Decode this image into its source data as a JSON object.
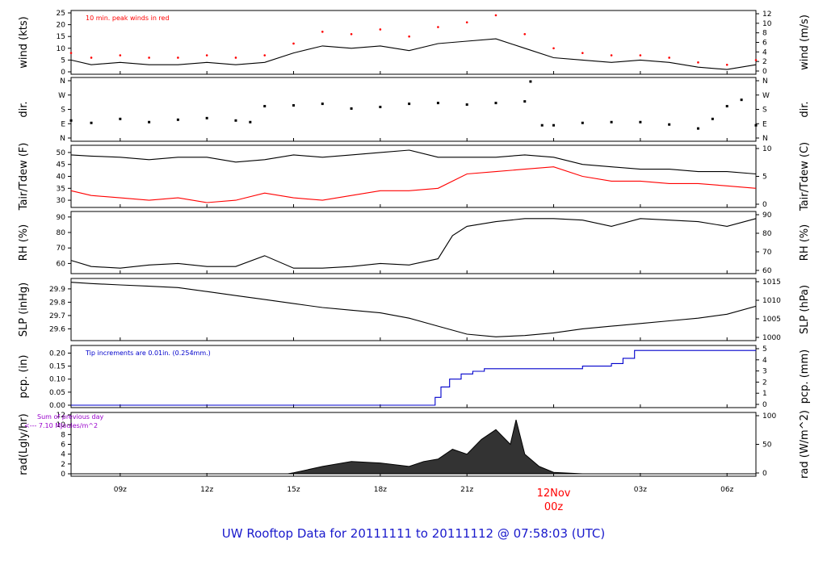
{
  "footer_title": "UW Rooftop Data for 20111111  to  20111112 @ 07:58:03  (UTC)",
  "colors": {
    "axis": "#000000",
    "main_series": "#000000",
    "dewpoint": "#ff0000",
    "peak_wind": "#ff0000",
    "precip": "#0000cc",
    "radiation_note": "#9900cc",
    "date_label": "#ff0000",
    "footer": "#1a1acc"
  },
  "x_axis": {
    "tick_labels": [
      "09z",
      "12z",
      "15z",
      "18z",
      "21z",
      "03z",
      "06z"
    ],
    "tick_hours": [
      9,
      12,
      15,
      18,
      21,
      27,
      30
    ],
    "date_marker": {
      "line1": "12Nov",
      "line2": "00z",
      "hour": 24
    },
    "range_hours": [
      7.3,
      31.0
    ]
  },
  "chart_data": [
    {
      "type": "line",
      "panel": "wind",
      "ylabel_left": "wind (kts)",
      "ylabel_right": "wind (m/s)",
      "ylim": [
        0,
        25
      ],
      "ticks_left": [
        0,
        5,
        10,
        15,
        20,
        25
      ],
      "ticks_right": [
        "0",
        "2",
        "4",
        "6",
        "8",
        "10",
        "12"
      ],
      "annotation": "10 min. peak winds in red",
      "series": [
        {
          "x": [
            7.3,
            8,
            9,
            10,
            11,
            12,
            13,
            14,
            15,
            16,
            17,
            18,
            19,
            20,
            21,
            22,
            23,
            24,
            25,
            26,
            27,
            28,
            29,
            30,
            31
          ],
          "values": [
            5,
            3,
            4,
            3,
            3,
            4,
            3,
            4,
            8,
            11,
            10,
            11,
            9,
            12,
            13,
            14,
            10,
            6,
            5,
            4,
            5,
            4,
            2,
            1,
            3
          ]
        },
        {
          "name": "peak",
          "x": [
            7.3,
            8,
            9,
            10,
            11,
            12,
            13,
            14,
            15,
            16,
            17,
            18,
            19,
            20,
            21,
            22,
            23,
            24,
            25,
            26,
            27,
            28,
            29,
            30,
            31
          ],
          "values": [
            8,
            6,
            7,
            6,
            6,
            7,
            6,
            7,
            12,
            17,
            16,
            18,
            15,
            19,
            21,
            24,
            16,
            10,
            8,
            7,
            7,
            6,
            4,
            3,
            5
          ]
        }
      ]
    },
    {
      "type": "scatter",
      "panel": "direction",
      "ylabel_left": "dir.",
      "ylabel_right": "dir.",
      "ticks_left": [
        "N",
        "E",
        "S",
        "W",
        "N"
      ],
      "ticks_right": [
        "N",
        "E",
        "S",
        "W",
        "N"
      ],
      "x": [
        7.3,
        8,
        9,
        10,
        11,
        12,
        13,
        13.5,
        14,
        15,
        16,
        17,
        18,
        19,
        20,
        21,
        22,
        23,
        23.2,
        23.6,
        24,
        25,
        26,
        27,
        28,
        29,
        29.5,
        30,
        30.5,
        31
      ],
      "values": [
        110,
        95,
        120,
        100,
        115,
        125,
        110,
        100,
        200,
        205,
        215,
        185,
        195,
        215,
        220,
        210,
        220,
        230,
        355,
        80,
        80,
        95,
        100,
        100,
        85,
        60,
        120,
        200,
        240,
        80
      ]
    },
    {
      "type": "line",
      "panel": "temperature",
      "ylabel_left": "Tair/Tdew (F)",
      "ylabel_right": "Tair/Tdew (C)",
      "ylim": [
        28,
        52
      ],
      "ticks_left": [
        30,
        35,
        40,
        45,
        50
      ],
      "ticks_right": [
        "0",
        "5",
        "10"
      ],
      "series": [
        {
          "name": "Tair",
          "x": [
            7.3,
            8,
            9,
            10,
            11,
            12,
            13,
            14,
            15,
            16,
            17,
            18,
            19,
            20,
            21,
            22,
            23,
            24,
            25,
            26,
            27,
            28,
            29,
            30,
            31
          ],
          "values": [
            49,
            48.5,
            48,
            47,
            48,
            48,
            46,
            47,
            49,
            48,
            49,
            50,
            51,
            48,
            48,
            48,
            49,
            48,
            45,
            44,
            43,
            43,
            42,
            42,
            41
          ]
        },
        {
          "name": "Tdew",
          "x": [
            7.3,
            8,
            9,
            10,
            11,
            12,
            13,
            14,
            15,
            16,
            17,
            18,
            19,
            20,
            21,
            22,
            23,
            24,
            25,
            26,
            27,
            28,
            29,
            30,
            31
          ],
          "values": [
            34,
            32,
            31,
            30,
            31,
            29,
            30,
            33,
            31,
            30,
            32,
            34,
            34,
            35,
            41,
            42,
            43,
            44,
            40,
            38,
            38,
            37,
            37,
            36,
            35
          ]
        }
      ]
    },
    {
      "type": "line",
      "panel": "humidity",
      "ylabel_left": "RH (%)",
      "ylabel_right": "RH (%)",
      "ylim": [
        55,
        92
      ],
      "ticks_left": [
        60,
        70,
        80,
        90
      ],
      "ticks_right": [
        "60",
        "70",
        "80",
        "90"
      ],
      "series": [
        {
          "x": [
            7.3,
            8,
            9,
            10,
            11,
            12,
            13,
            14,
            15,
            16,
            17,
            18,
            19,
            20,
            20.5,
            21,
            22,
            23,
            24,
            25,
            26,
            27,
            28,
            29,
            30,
            31
          ],
          "values": [
            62,
            58,
            57,
            59,
            60,
            58,
            58,
            65,
            57,
            57,
            58,
            60,
            59,
            63,
            78,
            84,
            87,
            89,
            89,
            88,
            84,
            89,
            88,
            87,
            84,
            89
          ]
        }
      ]
    },
    {
      "type": "line",
      "panel": "pressure",
      "ylabel_left": "SLP (inHg)",
      "ylabel_right": "SLP (hPa)",
      "ylim": [
        29.53,
        29.96
      ],
      "ticks_left": [
        "29.6",
        "29.7",
        "29.8",
        "29.9"
      ],
      "ticks_right": [
        "1000",
        "1005",
        "1010",
        "1015"
      ],
      "series": [
        {
          "x": [
            7.3,
            8,
            9,
            10,
            11,
            12,
            13,
            14,
            15,
            16,
            17,
            18,
            19,
            20,
            21,
            22,
            23,
            24,
            25,
            26,
            27,
            28,
            29,
            30,
            31
          ],
          "values": [
            29.95,
            29.94,
            29.93,
            29.92,
            29.91,
            29.88,
            29.85,
            29.82,
            29.79,
            29.76,
            29.74,
            29.72,
            29.68,
            29.62,
            29.56,
            29.54,
            29.55,
            29.57,
            29.6,
            29.62,
            29.64,
            29.66,
            29.68,
            29.71,
            29.77
          ]
        }
      ]
    },
    {
      "type": "line",
      "panel": "precipitation",
      "ylabel_left": "pcp. (in)",
      "ylabel_right": "pcp. (mm)",
      "ylim": [
        0,
        0.22
      ],
      "ticks_left": [
        "0.00",
        "0.05",
        "0.10",
        "0.15",
        "0.20"
      ],
      "ticks_right": [
        "0",
        "1",
        "2",
        "3",
        "4",
        "5"
      ],
      "annotation": "Tip increments are 0.01in. (0.254mm.)",
      "series": [
        {
          "x": [
            7.3,
            19.6,
            19.9,
            20.1,
            20.4,
            20.8,
            21.2,
            21.6,
            22,
            23,
            24,
            25,
            26,
            26.4,
            26.8,
            27,
            28,
            29,
            30,
            31
          ],
          "values": [
            0,
            0,
            0.03,
            0.07,
            0.1,
            0.12,
            0.13,
            0.14,
            0.14,
            0.14,
            0.14,
            0.15,
            0.16,
            0.18,
            0.21,
            0.21,
            0.21,
            0.21,
            0.21,
            0.21
          ]
        }
      ]
    },
    {
      "type": "area",
      "panel": "radiation",
      "ylabel_left": "rad(Lgly/hr)",
      "ylabel_right": "rad (W/m^2)",
      "ylim": [
        0,
        12
      ],
      "ticks_left": [
        0,
        2,
        4,
        6,
        8,
        10,
        12
      ],
      "ticks_right": [
        "0",
        "50",
        "100"
      ],
      "annotation_line1": "Sum of previous day",
      "annotation_line2": "<--- 7.10 MJoules/m^2",
      "series": [
        {
          "x": [
            7.3,
            14.8,
            15,
            16,
            17,
            18,
            19,
            19.5,
            20,
            20.5,
            21,
            21.5,
            22,
            22.5,
            22.7,
            23,
            23.5,
            24,
            25,
            31
          ],
          "values": [
            0,
            0,
            0.2,
            1.5,
            2.5,
            2.2,
            1.5,
            2.5,
            3,
            5,
            4,
            7,
            9,
            6,
            11,
            4,
            1.5,
            0.3,
            0,
            0
          ]
        }
      ]
    }
  ]
}
